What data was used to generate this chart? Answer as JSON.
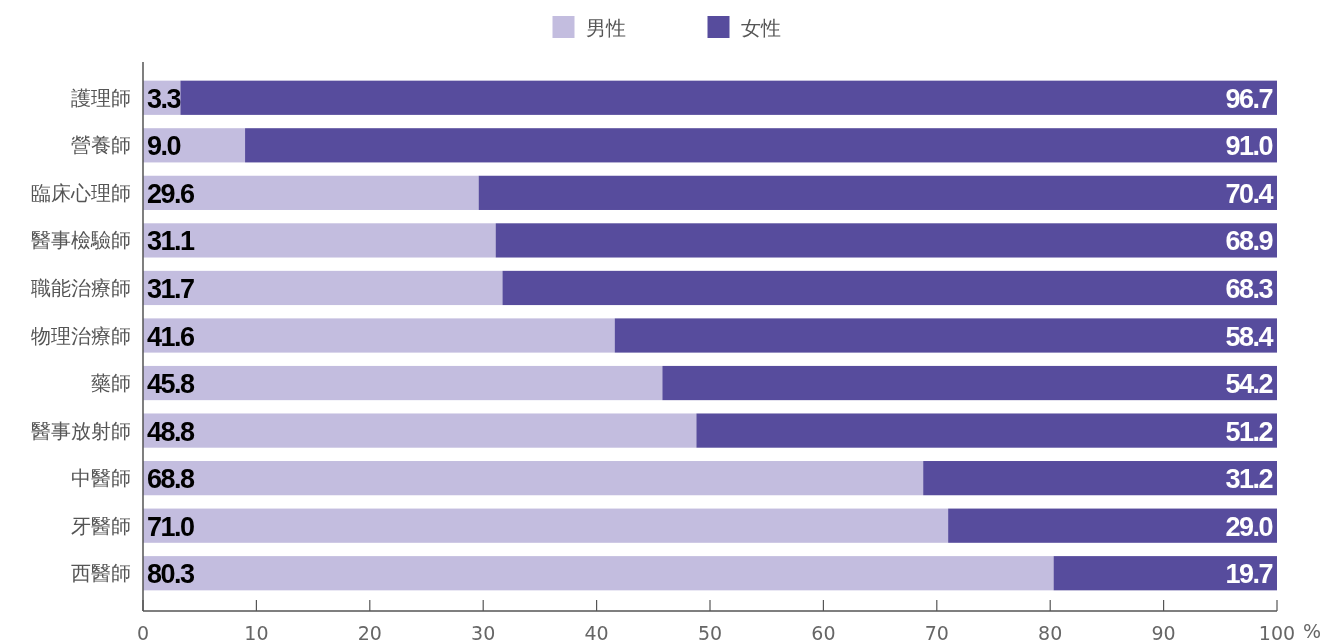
{
  "chart_data": {
    "type": "bar",
    "orientation": "horizontal",
    "stacked": true,
    "categories": [
      "護理師",
      "營養師",
      "臨床心理師",
      "醫事檢驗師",
      "職能治療師",
      "物理治療師",
      "藥師",
      "醫事放射師",
      "中醫師",
      "牙醫師",
      "西醫師"
    ],
    "series": [
      {
        "name": "男性",
        "color": "#c3bddf",
        "values": [
          3.3,
          9.0,
          29.6,
          31.1,
          31.7,
          41.6,
          45.8,
          48.8,
          68.8,
          71.0,
          80.3
        ],
        "value_labels": [
          "3.3",
          "9.0",
          "29.6",
          "31.1",
          "31.7",
          "41.6",
          "45.8",
          "48.8",
          "68.8",
          "71.0",
          "80.3"
        ]
      },
      {
        "name": "女性",
        "color": "#574c9d",
        "values": [
          96.7,
          91.0,
          70.4,
          68.9,
          68.3,
          58.4,
          54.2,
          51.2,
          31.2,
          29.0,
          19.7
        ],
        "value_labels": [
          "96.7",
          "91.0",
          "70.4",
          "68.9",
          "68.3",
          "58.4",
          "54.2",
          "51.2",
          "31.2",
          "29.0",
          "19.7"
        ]
      }
    ],
    "xlim": [
      0,
      100
    ],
    "xticks": [
      0,
      10,
      20,
      30,
      40,
      50,
      60,
      70,
      80,
      90,
      100
    ],
    "xlabel": "%",
    "legend": "top"
  }
}
